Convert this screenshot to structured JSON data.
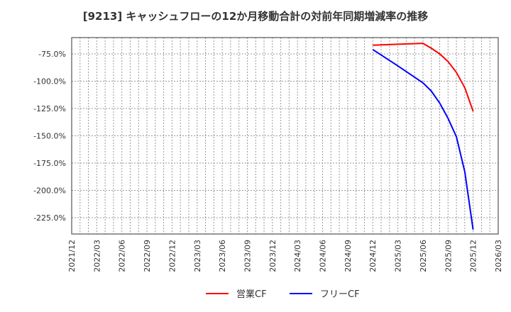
{
  "title": "[9213]  キャッシュフローの12か月移動合計の対前年同期増減率の推移",
  "chart_data": {
    "type": "line",
    "title": "[9213]  キャッシュフローの12か月移動合計の対前年同期増減率の推移",
    "xlabel": "",
    "ylabel": "",
    "ylim": [
      -240,
      -60
    ],
    "x_range": [
      "2021/12",
      "2026/03"
    ],
    "yticks": [
      -75,
      -100,
      -125,
      -150,
      -175,
      -200,
      -225
    ],
    "ytick_labels": [
      "-75.0%",
      "-100.0%",
      "-125.0%",
      "-150.0%",
      "-175.0%",
      "-200.0%",
      "-225.0%"
    ],
    "xtick_labels": [
      "2021/12",
      "2022/03",
      "2022/06",
      "2022/09",
      "2022/12",
      "2023/03",
      "2023/06",
      "2023/09",
      "2023/12",
      "2024/03",
      "2024/06",
      "2024/09",
      "2024/12",
      "2025/03",
      "2025/06",
      "2025/09",
      "2025/12",
      "2026/03"
    ],
    "grid": true,
    "legend_position": "bottom",
    "series": [
      {
        "name": "営業CF",
        "color": "#ff0000",
        "x": [
          "2024/12",
          "2025/03",
          "2025/06",
          "2025/07",
          "2025/08",
          "2025/09",
          "2025/10",
          "2025/11",
          "2025/12"
        ],
        "values": [
          -67.0,
          -66.2,
          -65.3,
          -69.8,
          -75.0,
          -82.0,
          -92.0,
          -106.0,
          -127.5
        ]
      },
      {
        "name": "フリーCF",
        "color": "#0000ff",
        "x": [
          "2024/12",
          "2025/03",
          "2025/06",
          "2025/07",
          "2025/08",
          "2025/09",
          "2025/10",
          "2025/11",
          "2025/12"
        ],
        "values": [
          -71.0,
          -86.0,
          -101.5,
          -109.0,
          -120.0,
          -134.0,
          -151.0,
          -183.0,
          -236.0
        ]
      }
    ]
  },
  "legend": {
    "items": [
      {
        "label": "営業CF",
        "color": "#ff0000"
      },
      {
        "label": "フリーCF",
        "color": "#0000ff"
      }
    ]
  }
}
